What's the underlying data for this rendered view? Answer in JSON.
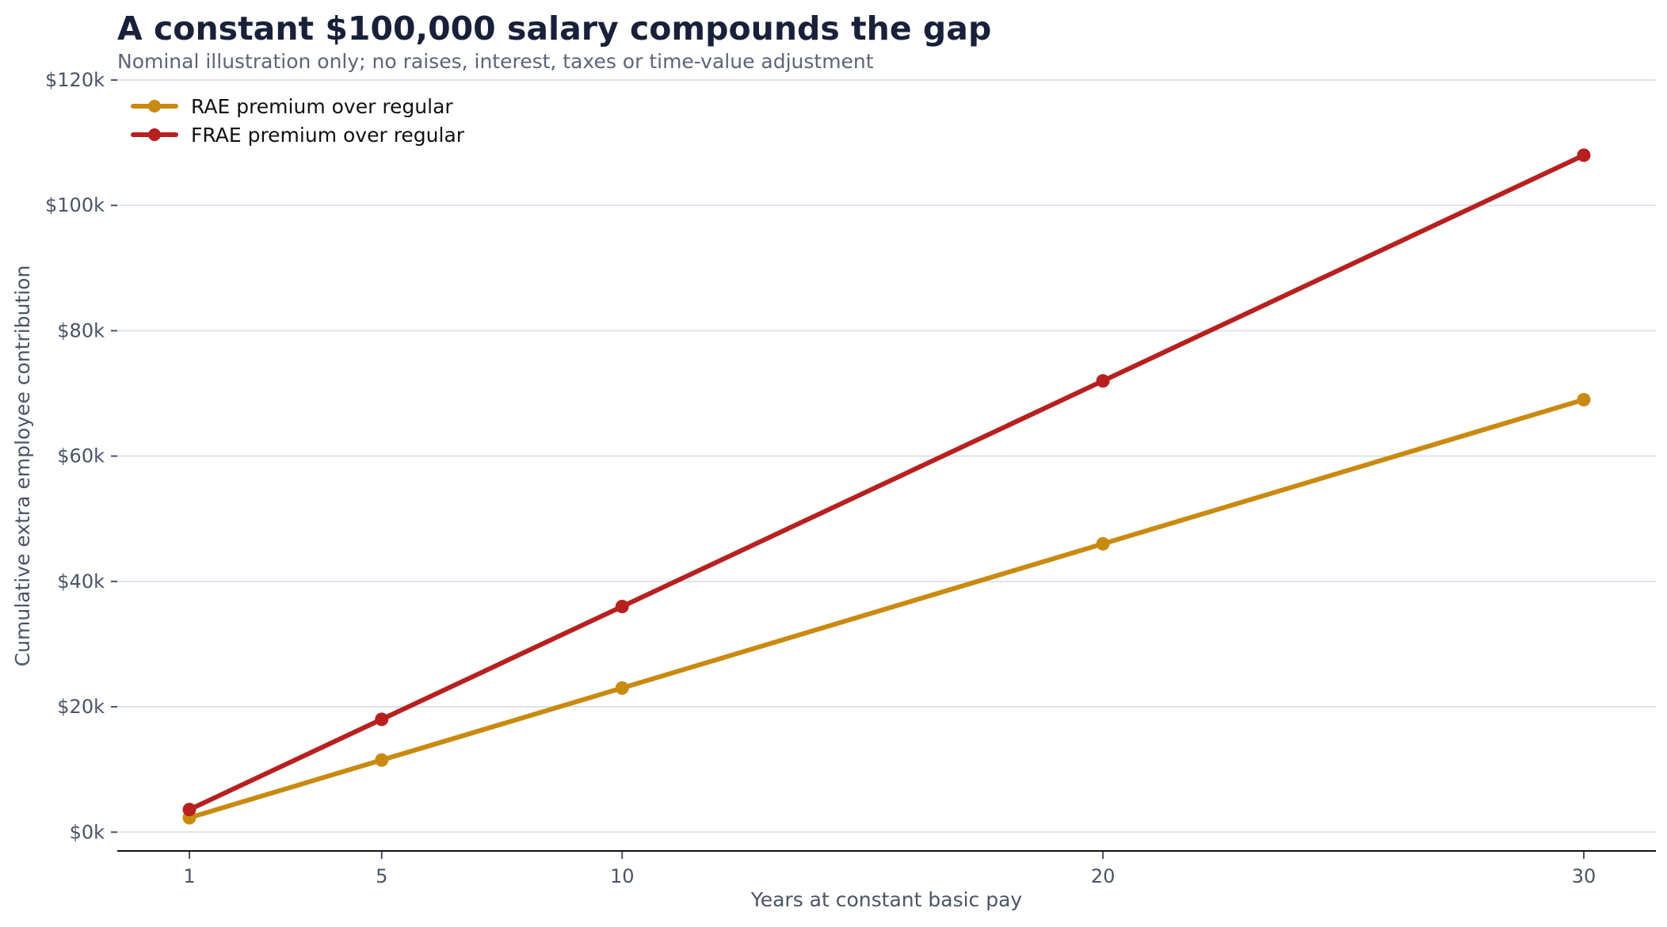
{
  "chart_data": {
    "type": "line",
    "title": "A constant $100,000 salary compounds the gap",
    "subtitle": "Nominal illustration only; no raises, interest, taxes or time-value adjustment",
    "xlabel": "Years at constant basic pay",
    "ylabel": "Cumulative extra employee contribution",
    "x": [
      1,
      5,
      10,
      20,
      30
    ],
    "x_tick_labels": [
      "1",
      "5",
      "10",
      "20",
      "30"
    ],
    "xlim": [
      -0.5,
      31.5
    ],
    "ylim": [
      -3000,
      120000
    ],
    "y_ticks": [
      0,
      20000,
      40000,
      60000,
      80000,
      100000,
      120000
    ],
    "y_tick_labels": [
      "$0k",
      "$20k",
      "$40k",
      "$60k",
      "$80k",
      "$100k",
      "$120k"
    ],
    "grid": "horizontal",
    "legend_position": "top-left",
    "series": [
      {
        "name": "RAE premium over regular",
        "color": "#c98a10",
        "values": [
          2300,
          11500,
          23000,
          46000,
          69000
        ]
      },
      {
        "name": "FRAE premium over regular",
        "color": "#b82020",
        "values": [
          3600,
          18000,
          36000,
          72000,
          108000
        ]
      }
    ]
  }
}
